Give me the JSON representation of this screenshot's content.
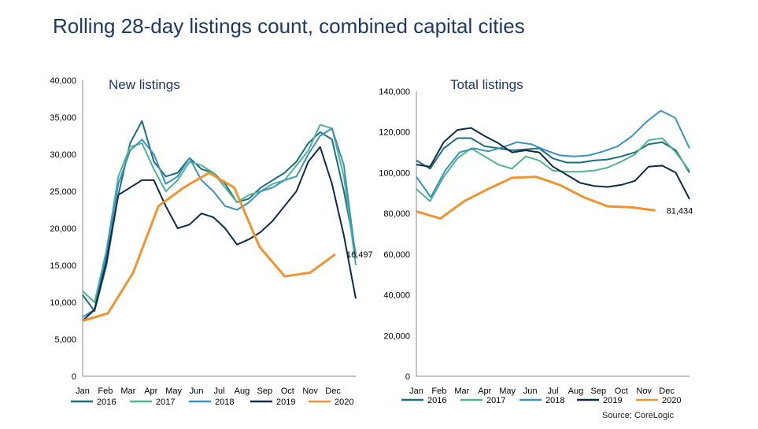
{
  "title": "Rolling 28-day listings count, combined capital cities",
  "source": "Source: CoreLogic",
  "colors": {
    "2016": "#1a6f7a",
    "2017": "#4fb58f",
    "2018": "#3a92c2",
    "2019": "#0f2a4a",
    "2020": "#f09430"
  },
  "chart_data": [
    {
      "type": "line",
      "title": "New listings",
      "x_ticks": [
        "Jan",
        "Feb",
        "Mar",
        "Apr",
        "May",
        "Jun",
        "Jul",
        "Aug",
        "Sep",
        "Oct",
        "Nov",
        "Dec"
      ],
      "ylim": [
        0,
        40000
      ],
      "y_ticks": [
        "0",
        "5,000",
        "10,000",
        "15,000",
        "20,000",
        "25,000",
        "30,000",
        "35,000",
        "40,000"
      ],
      "annotation": "16,497",
      "series": [
        {
          "name": "2016",
          "values": [
            11000,
            8800,
            15000,
            24500,
            31500,
            34500,
            29000,
            27000,
            27500,
            29500,
            28000,
            27500,
            26000,
            23500,
            24000,
            25500,
            26500,
            27500,
            29000,
            31500,
            33000,
            32000,
            25000,
            16500
          ]
        },
        {
          "name": "2017",
          "values": [
            11500,
            10000,
            17000,
            27000,
            31000,
            31500,
            28000,
            25000,
            26500,
            29000,
            28500,
            27500,
            25500,
            23500,
            24500,
            25000,
            26000,
            26500,
            28500,
            30500,
            34000,
            33500,
            27000,
            15000
          ]
        },
        {
          "name": "2018",
          "values": [
            8000,
            9000,
            16500,
            26000,
            30500,
            32000,
            30000,
            26000,
            27000,
            29500,
            26500,
            25000,
            23000,
            22500,
            23500,
            25000,
            25500,
            26500,
            27000,
            30000,
            32500,
            33500,
            28500,
            16000
          ]
        },
        {
          "name": "2019",
          "values": [
            7500,
            9000,
            15500,
            24500,
            25500,
            26500,
            26500,
            23000,
            20000,
            20500,
            22000,
            21500,
            20000,
            17800,
            18500,
            19500,
            21000,
            23000,
            25000,
            29000,
            31000,
            26000,
            19000,
            10500
          ]
        },
        {
          "name": "2020",
          "values": [
            7500,
            8500,
            14000,
            23000,
            25500,
            27500,
            25500,
            17500,
            13500,
            14000,
            16497
          ]
        }
      ]
    },
    {
      "type": "line",
      "title": "Total listings",
      "x_ticks": [
        "Jan",
        "Feb",
        "Mar",
        "Apr",
        "May",
        "Jun",
        "Jul",
        "Aug",
        "Sep",
        "Oct",
        "Nov",
        "Dec"
      ],
      "ylim": [
        0,
        140000
      ],
      "y_ticks": [
        "0",
        "20,000",
        "40,000",
        "60,000",
        "80,000",
        "100,000",
        "120,000",
        "140,000"
      ],
      "annotation": "81,434",
      "series": [
        {
          "name": "2016",
          "values": [
            106000,
            102000,
            112000,
            117000,
            117000,
            113000,
            112000,
            111000,
            111500,
            112000,
            107000,
            105000,
            105000,
            106000,
            106500,
            108000,
            110000,
            114000,
            115000,
            111000,
            100000
          ]
        },
        {
          "name": "2017",
          "values": [
            92000,
            86000,
            98000,
            107000,
            112000,
            108000,
            104000,
            102000,
            108000,
            106000,
            101000,
            100500,
            100500,
            101000,
            102500,
            105500,
            109000,
            116000,
            117000,
            110000,
            101000
          ]
        },
        {
          "name": "2018",
          "values": [
            98000,
            88000,
            101000,
            110000,
            112000,
            110500,
            112500,
            115000,
            114000,
            111000,
            108500,
            108000,
            108500,
            110500,
            113000,
            118000,
            125000,
            130500,
            127000,
            112000
          ]
        },
        {
          "name": "2019",
          "values": [
            104000,
            103000,
            115000,
            121000,
            122000,
            118000,
            114500,
            110000,
            111000,
            110000,
            103000,
            99000,
            95000,
            93500,
            93000,
            94000,
            96000,
            103000,
            103500,
            100000,
            87000
          ]
        },
        {
          "name": "2020",
          "values": [
            81000,
            77500,
            86000,
            92000,
            97500,
            98000,
            94000,
            88000,
            83500,
            83000,
            81434
          ]
        }
      ]
    }
  ]
}
